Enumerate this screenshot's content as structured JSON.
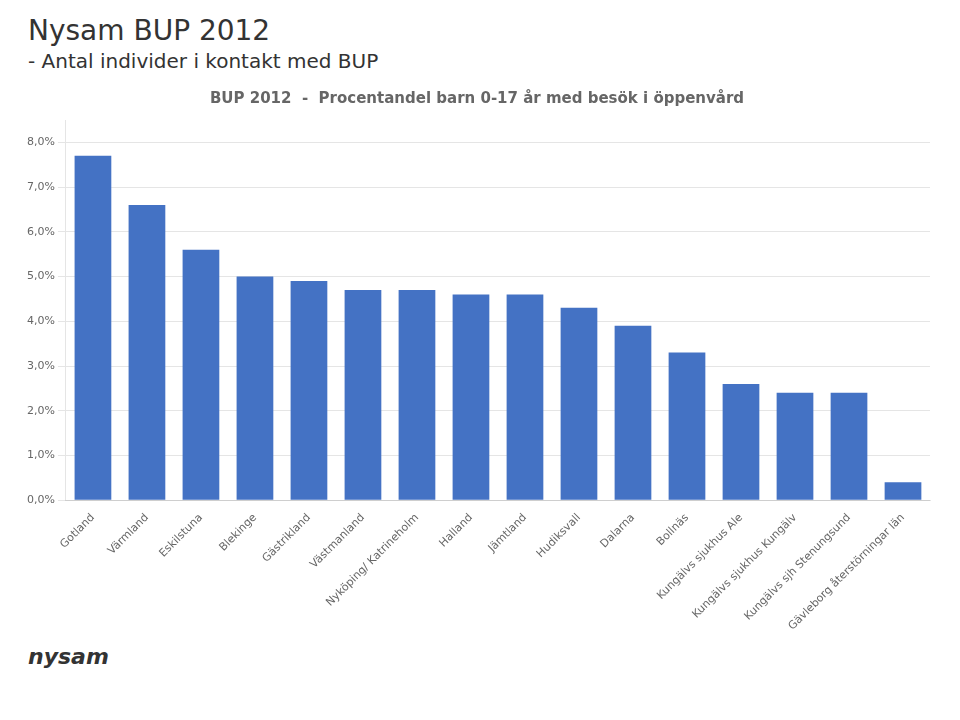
{
  "chart_data": {
    "type": "bar",
    "title": "BUP 2012  -  Procentandel barn 0-17 år med besök i öppenvård",
    "annotations": [
      "Nysam BUP 2012",
      "- Antal individer i kontakt med BUP",
      "nysam"
    ],
    "categories": [
      "Gotland",
      "Värmland",
      "Eskilstuna",
      "Blekinge",
      "Gästrikland",
      "Västmanland",
      "Nyköping/ Katrineholm",
      "Halland",
      "Jämtland",
      "Hudiksvall",
      "Dalarna",
      "Bollnäs",
      "Kungälvs sjukhus Ale",
      "Kungälvs sjukhus Kungälv",
      "Kungälvs sjh Stenungsund",
      "Gävleborg återstörningar län"
    ],
    "values": [
      0.077,
      0.066,
      0.056,
      0.05,
      0.049,
      0.047,
      0.047,
      0.046,
      0.046,
      0.043,
      0.039,
      0.033,
      0.026,
      0.024,
      0.024,
      0.004
    ],
    "color": "#4472C4",
    "ylim": [
      0,
      0.085
    ],
    "yticks": [
      {
        "value": 0.0,
        "label": "0,0%"
      },
      {
        "value": 0.01,
        "label": "1,0%"
      },
      {
        "value": 0.02,
        "label": "2,0%"
      },
      {
        "value": 0.03,
        "label": "3,0%"
      },
      {
        "value": 0.04,
        "label": "4,0%"
      },
      {
        "value": 0.05,
        "label": "5,0%"
      },
      {
        "value": 0.06,
        "label": "6,0%"
      },
      {
        "value": 0.07,
        "label": "7,0%"
      },
      {
        "value": 0.08,
        "label": "8,0%"
      }
    ],
    "grid": true
  }
}
